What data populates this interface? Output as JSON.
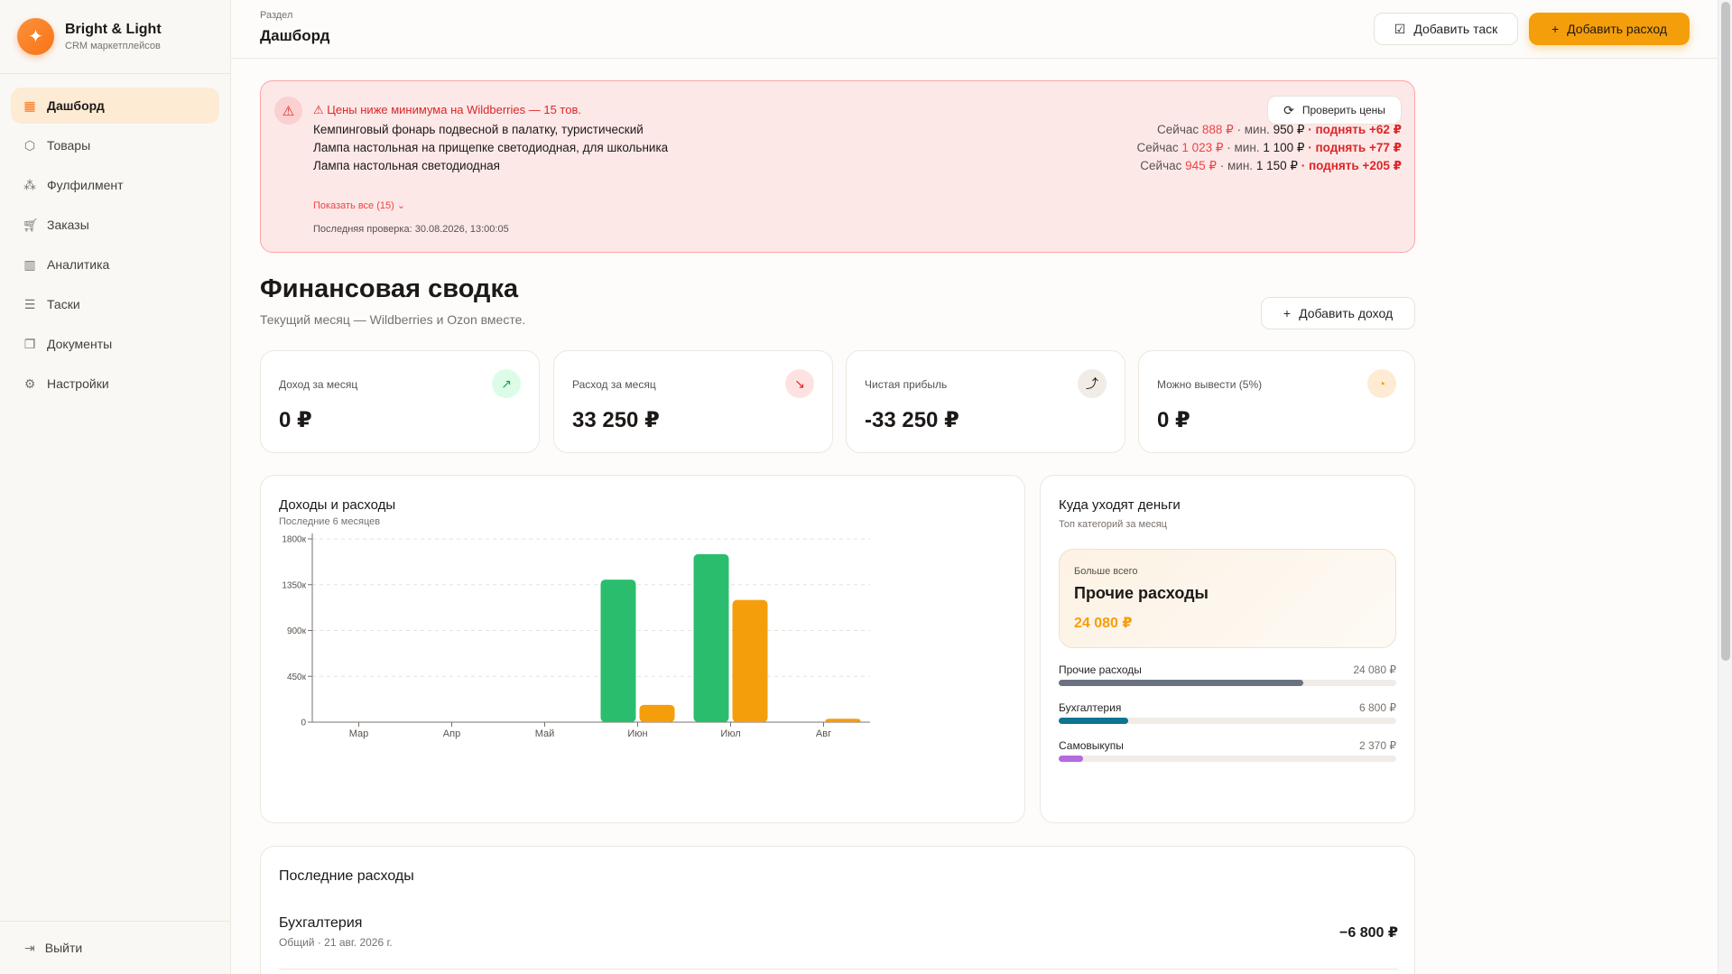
{
  "brand": {
    "name": "Bright & Light",
    "subtitle": "CRM маркетплейсов",
    "logo_icon": "sparkle-icon"
  },
  "sidebar": {
    "items": [
      {
        "label": "Дашборд",
        "icon": "dashboard-icon",
        "active": true
      },
      {
        "label": "Товары",
        "icon": "box-icon"
      },
      {
        "label": "Фулфилмент",
        "icon": "boxes-icon"
      },
      {
        "label": "Заказы",
        "icon": "cart-icon"
      },
      {
        "label": "Аналитика",
        "icon": "bar-chart-icon"
      },
      {
        "label": "Таски",
        "icon": "checklist-icon"
      },
      {
        "label": "Документы",
        "icon": "documents-icon"
      },
      {
        "label": "Настройки",
        "icon": "gear-icon"
      }
    ],
    "logout": "Выйти"
  },
  "header": {
    "section_label": "Раздел",
    "title": "Дашборд",
    "add_task": "Добавить таск",
    "add_expense": "Добавить расход"
  },
  "alert": {
    "title": "⚠ Цены ниже минимума на Wildberries — 15 тов.",
    "check_button": "Проверить цены",
    "rows": [
      {
        "name": "Кемпинговый фонарь подвесной в палатку, туристический",
        "now_label": "Сейчас",
        "now": "888 ₽",
        "min_label": "· мин.",
        "min": "950 ₽",
        "raise": "· поднять +62 ₽"
      },
      {
        "name": "Лампа настольная на прищепке светодиодная, для школьника",
        "now_label": "Сейчас",
        "now": "1 023 ₽",
        "min_label": "· мин.",
        "min": "1 100 ₽",
        "raise": "· поднять +77 ₽"
      },
      {
        "name": "Лампа настольная светодиодная",
        "now_label": "Сейчас",
        "now": "945 ₽",
        "min_label": "· мин.",
        "min": "1 150 ₽",
        "raise": "· поднять +205 ₽"
      }
    ],
    "show_all": "Показать все (15) ⌄",
    "last_check": "Последняя проверка: 30.08.2026, 13:00:05"
  },
  "summary": {
    "title": "Финансовая сводка",
    "subtitle": "Текущий месяц — Wildberries и Ozon вместе.",
    "add_income": "Добавить доход",
    "cards": [
      {
        "label": "Доход за месяц",
        "value": "0 ₽",
        "icon": "arrow-up-right-icon",
        "color": "#16a34a",
        "bg": "#dcfce7"
      },
      {
        "label": "Расход за месяц",
        "value": "33 250 ₽",
        "icon": "arrow-down-right-icon",
        "color": "#dc2626",
        "bg": "#fee2e2"
      },
      {
        "label": "Чистая прибыль",
        "value": "-33 250 ₽",
        "icon": "trending-up-icon",
        "color": "#1c1917",
        "bg": "#f1ece6"
      },
      {
        "label": "Можно вывести (5%)",
        "value": "0 ₽",
        "icon": "piggy-bank-icon",
        "color": "#f59e0b",
        "bg": "#fdecd3"
      }
    ]
  },
  "chart": {
    "title": "Доходы и расходы",
    "subtitle": "Последние 6 месяцев"
  },
  "chart_data": {
    "type": "bar",
    "categories": [
      "Мар",
      "Апр",
      "Май",
      "Июн",
      "Июл",
      "Авг"
    ],
    "series": [
      {
        "color": "#2bbd6e",
        "values": [
          0,
          0,
          0,
          1400000,
          1650000,
          0
        ]
      },
      {
        "color": "#f59e0b",
        "values": [
          0,
          0,
          0,
          170000,
          1200000,
          33250
        ]
      }
    ],
    "yticks": [
      0,
      450000,
      900000,
      1350000,
      1800000
    ],
    "ytick_labels": [
      "0",
      "450к",
      "900к",
      "1350к",
      "1800к"
    ],
    "ylim": [
      0,
      1800000
    ],
    "grid": true
  },
  "money": {
    "title": "Куда уходят деньги",
    "subtitle": "Топ категорий за месяц",
    "top_kicker": "Больше всего",
    "top_name": "Прочие расходы",
    "top_sum": "24 080 ₽",
    "categories": [
      {
        "name": "Прочие расходы",
        "value": "24 080 ₽",
        "share": 0.724,
        "color": "#6b7280"
      },
      {
        "name": "Бухгалтерия",
        "value": "6 800 ₽",
        "share": 0.205,
        "color": "#0e7490"
      },
      {
        "name": "Самовыкупы",
        "value": "2 370 ₽",
        "share": 0.071,
        "color": "#b46be0"
      }
    ]
  },
  "recent": {
    "title": "Последние расходы",
    "rows": [
      {
        "name": "Бухгалтерия",
        "meta": "Общий · 21 авг. 2026 г.",
        "amount": "−6 800 ₽"
      }
    ]
  }
}
